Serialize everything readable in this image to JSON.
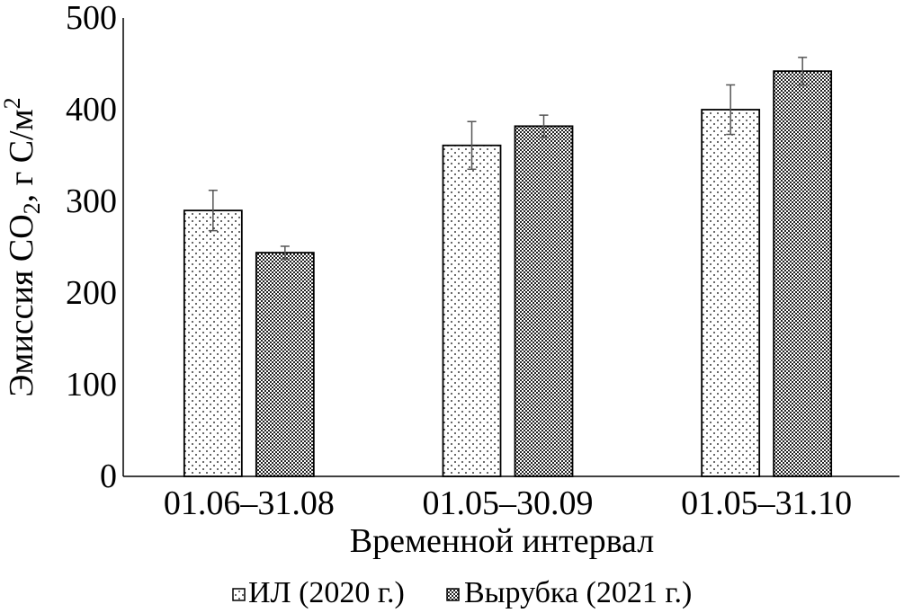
{
  "chart_data": {
    "type": "bar",
    "xlabel": "Временной интервал",
    "ylabel": "Эмиссия CO₂, г С/м²",
    "ylabel_parts": {
      "main": "Эмиссия CO",
      "sub": "2",
      "mid": ", г С/м",
      "sup": "2"
    },
    "ylim": [
      0,
      500
    ],
    "yticks": [
      "0",
      "100",
      "200",
      "300",
      "400",
      "500"
    ],
    "categories": [
      "01.06–31.08",
      "01.05–30.09",
      "01.05–31.10"
    ],
    "series": [
      {
        "name": "ИЛ (2020 г.)",
        "values": [
          290,
          361,
          400
        ],
        "errors": [
          22,
          26,
          27
        ],
        "pattern": "dots"
      },
      {
        "name": "Вырубка (2021 г.)",
        "values": [
          244,
          382,
          442
        ],
        "errors": [
          7,
          12,
          15
        ],
        "pattern": "crosshatch"
      }
    ],
    "grid": false,
    "legend_position": "bottom",
    "colors": {
      "bar_fill": "#ffffff",
      "bar_stroke": "#000000",
      "error_bar": "#555555"
    }
  }
}
